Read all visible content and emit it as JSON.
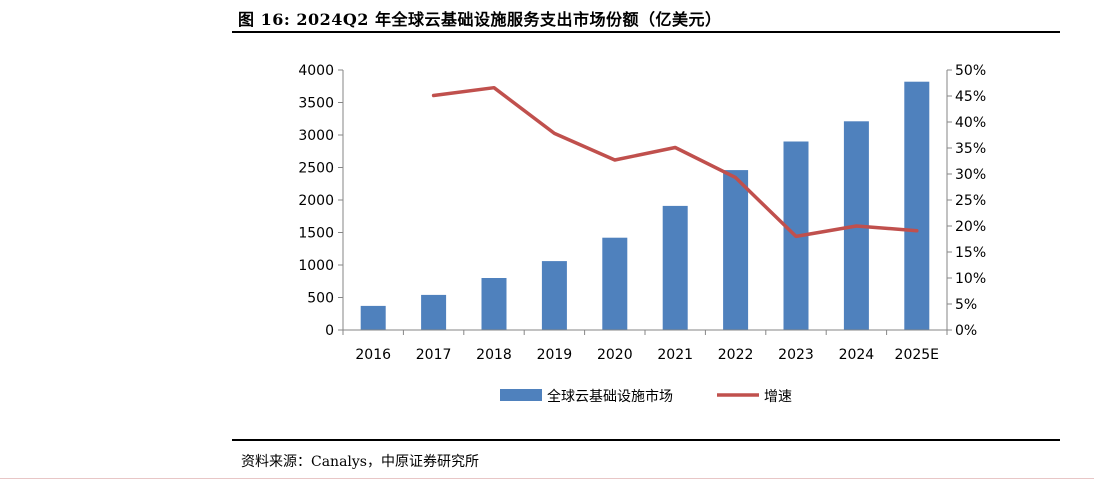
{
  "figure_title": "图 16: 2024Q2 年全球云基础设施服务支出市场份额（亿美元）",
  "source_note": "资料来源：Canalys，中原证券研究所",
  "chart_data": {
    "type": "bar",
    "title": "图 16: 2024Q2 年全球云基础设施服务支出市场份额（亿美元）",
    "categories": [
      "2016",
      "2017",
      "2018",
      "2019",
      "2020",
      "2021",
      "2022",
      "2023",
      "2024",
      "2025E"
    ],
    "series": [
      {
        "name": "全球云基础设施市场",
        "type": "bar",
        "axis": "left",
        "color": "#4F81BD",
        "values": [
          370,
          540,
          800,
          1060,
          1420,
          1910,
          2460,
          2900,
          3210,
          3820
        ]
      },
      {
        "name": "增速",
        "type": "line",
        "axis": "right",
        "color": "#C0504D",
        "values": [
          null,
          45.1,
          46.6,
          37.8,
          32.7,
          35.1,
          29.3,
          18.0,
          20.0,
          19.1
        ]
      }
    ],
    "y_left": {
      "min": 0,
      "max": 4000,
      "step": 500,
      "ticks": [
        "0",
        "500",
        "1000",
        "1500",
        "2000",
        "2500",
        "3000",
        "3500",
        "4000"
      ]
    },
    "y_right": {
      "min": 0,
      "max": 50,
      "step": 5,
      "unit": "%",
      "ticks": [
        "0%",
        "5%",
        "10%",
        "15%",
        "20%",
        "25%",
        "30%",
        "35%",
        "40%",
        "45%",
        "50%"
      ]
    },
    "grid": false,
    "legend": {
      "position": "bottom",
      "items": [
        "全球云基础设施市场",
        "增速"
      ]
    }
  }
}
